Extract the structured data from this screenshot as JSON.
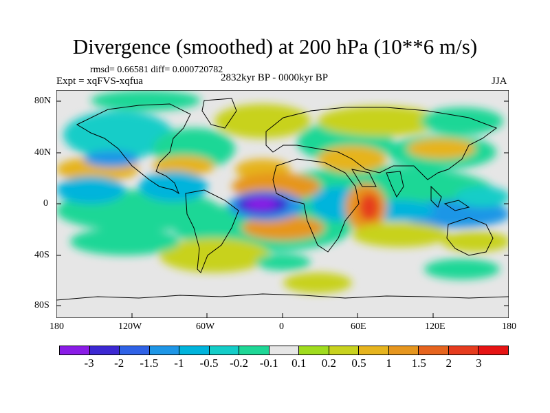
{
  "title": "Divergence (smoothed) at 200 hPa (10**6 m/s)",
  "stats": "rmsd= 0.66581 diff= 0.000720782",
  "experiment": "Expt = xqFVS-xqfua",
  "period": "2832kyr BP - 0000kyr BP",
  "season": "JJA",
  "lat_labels": [
    "80N",
    "40N",
    "0",
    "40S",
    "80S"
  ],
  "lon_labels": [
    "180",
    "120W",
    "60W",
    "0",
    "60E",
    "120E",
    "180"
  ],
  "colorbar": {
    "levels": [
      "-3",
      "-2",
      "-1.5",
      "-1",
      "-0.5",
      "-0.2",
      "-0.1",
      "0.1",
      "0.2",
      "0.5",
      "1",
      "1.5",
      "2",
      "3"
    ],
    "colors": [
      "#8a1ce6",
      "#3c28d2",
      "#2f62e6",
      "#1e96e6",
      "#00b4dc",
      "#14cdc8",
      "#1ed796",
      "#e6e6e6",
      "#a0dc1e",
      "#c8d21e",
      "#e6b41e",
      "#e6961e",
      "#e6641e",
      "#e63c1e",
      "#e61414"
    ]
  },
  "colors": {
    "background_missing": "#e6e6e6",
    "coast": "#000000"
  }
}
